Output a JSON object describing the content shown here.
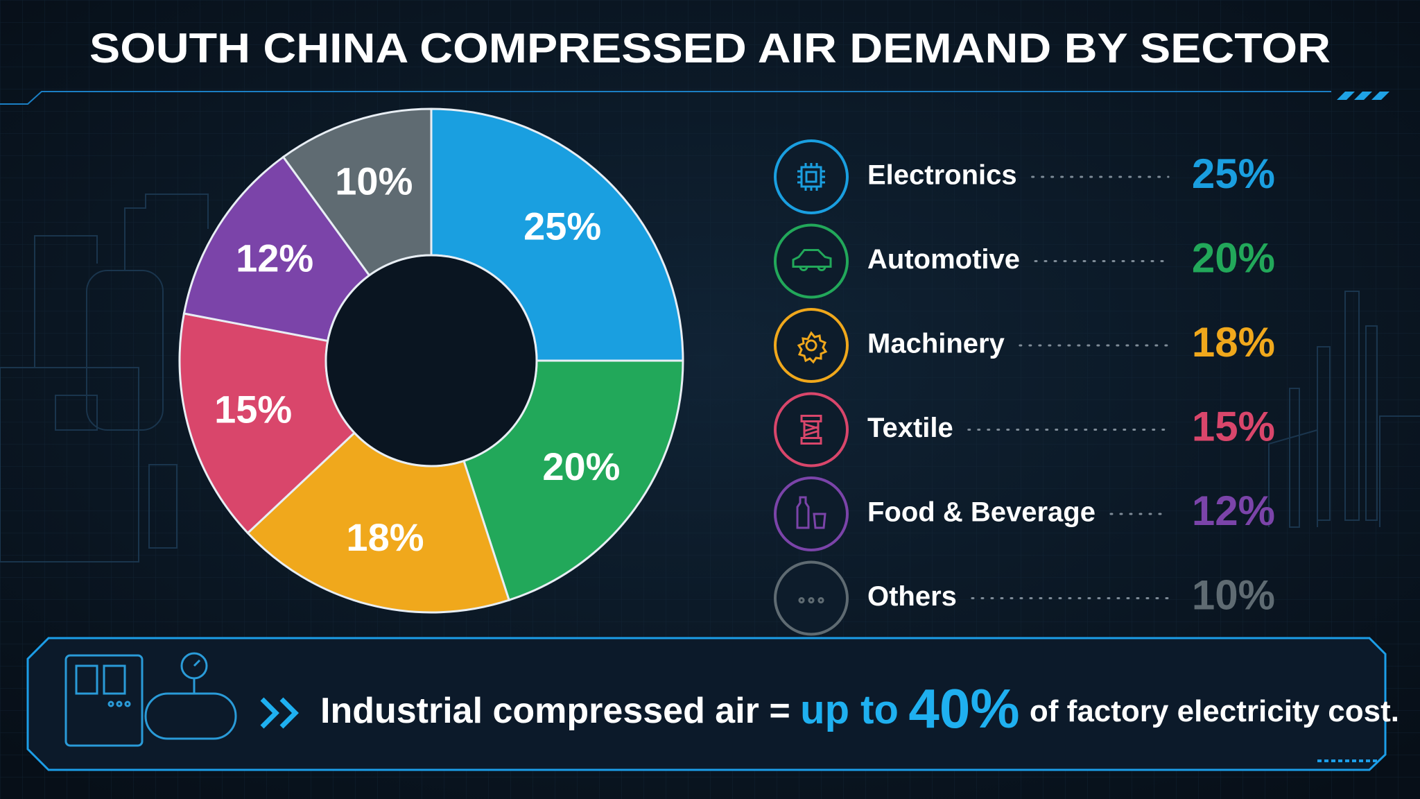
{
  "chart_data": {
    "type": "pie",
    "title": "SOUTH CHINA COMPRESSED AIR DEMAND BY SECTOR",
    "categories": [
      "Electronics",
      "Automotive",
      "Machinery",
      "Textile",
      "Food & Beverage",
      "Others"
    ],
    "values": [
      25,
      20,
      18,
      15,
      12,
      10
    ],
    "value_labels": [
      "25%",
      "20%",
      "18%",
      "15%",
      "12%",
      "10%"
    ],
    "colors": [
      "#1a9fe0",
      "#22a85a",
      "#f0a81c",
      "#d9466b",
      "#7b44a9",
      "#5f6b72"
    ],
    "donut": true,
    "legend": "right",
    "annotation": {
      "lead": "Industrial compressed air =",
      "highlight": "up to",
      "figure": "40%",
      "tail": "of factory electricity cost."
    }
  }
}
